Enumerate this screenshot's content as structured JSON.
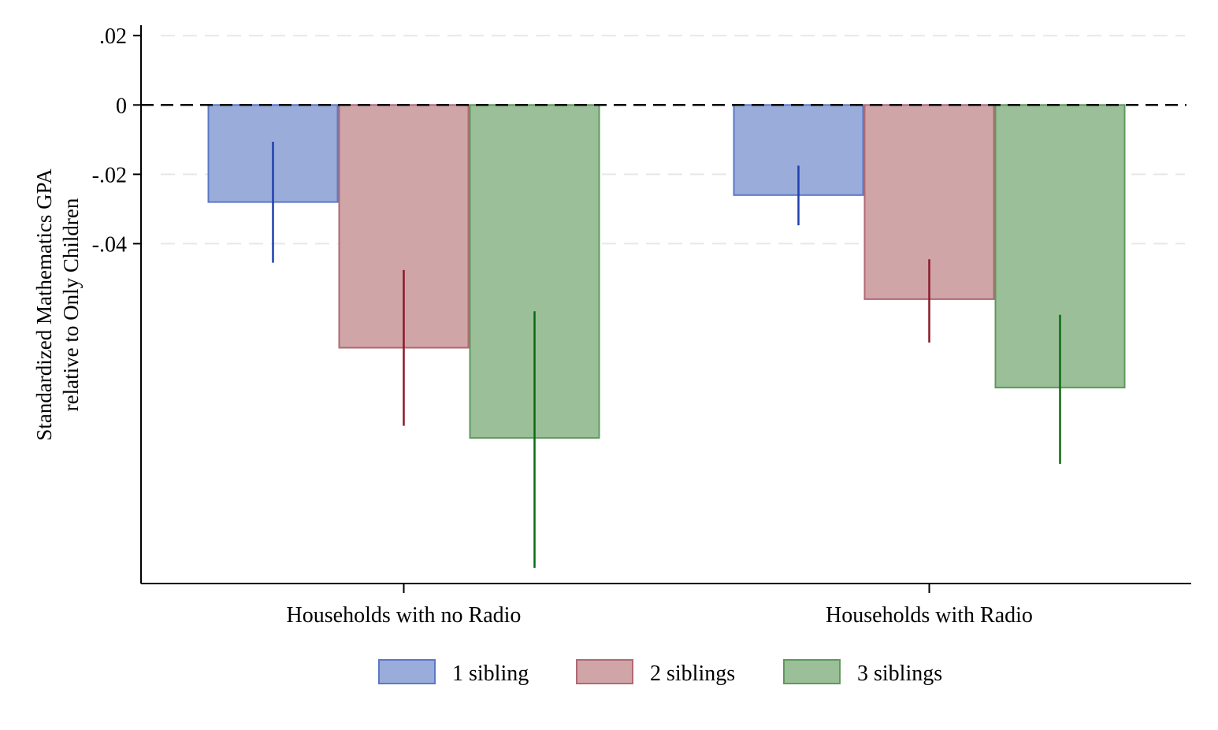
{
  "chart_data": {
    "type": "bar",
    "categories": [
      "Households with no Radio",
      "Households with Radio"
    ],
    "series": [
      {
        "name": "1 sibling",
        "values": [
          -0.028,
          -0.026
        ],
        "ci_low": [
          -0.0455,
          -0.0347
        ],
        "ci_high": [
          -0.0106,
          -0.0175
        ],
        "fill": "#9aacd9",
        "stroke": "#5b78c7",
        "error_color": "#1f3fae"
      },
      {
        "name": "2 siblings",
        "values": [
          -0.07,
          -0.056
        ],
        "ci_low": [
          -0.0925,
          -0.0685
        ],
        "ci_high": [
          -0.0476,
          -0.0445
        ],
        "fill": "#d0a5a8",
        "stroke": "#b06a72",
        "error_color": "#8b1a2a"
      },
      {
        "name": "3 siblings",
        "values": [
          -0.096,
          -0.0815
        ],
        "ci_low": [
          -0.1335,
          -0.1035
        ],
        "ci_high": [
          -0.0595,
          -0.0605
        ],
        "fill": "#9bbf99",
        "stroke": "#5e9a5c",
        "error_color": "#0b6b10"
      }
    ],
    "ylabel_lines": [
      "Standardized Mathematics GPA",
      "relative to Only Children"
    ],
    "xlabel": "",
    "yticks": [
      0.02,
      0,
      -0.02,
      -0.04
    ],
    "ytick_labels": [
      ".02",
      "0",
      "-.02",
      "-.04"
    ],
    "ylim": [
      -0.138,
      0.023
    ],
    "reference_line": {
      "y": 0,
      "style": "dashed"
    },
    "grid": true,
    "legend_position": "bottom"
  }
}
